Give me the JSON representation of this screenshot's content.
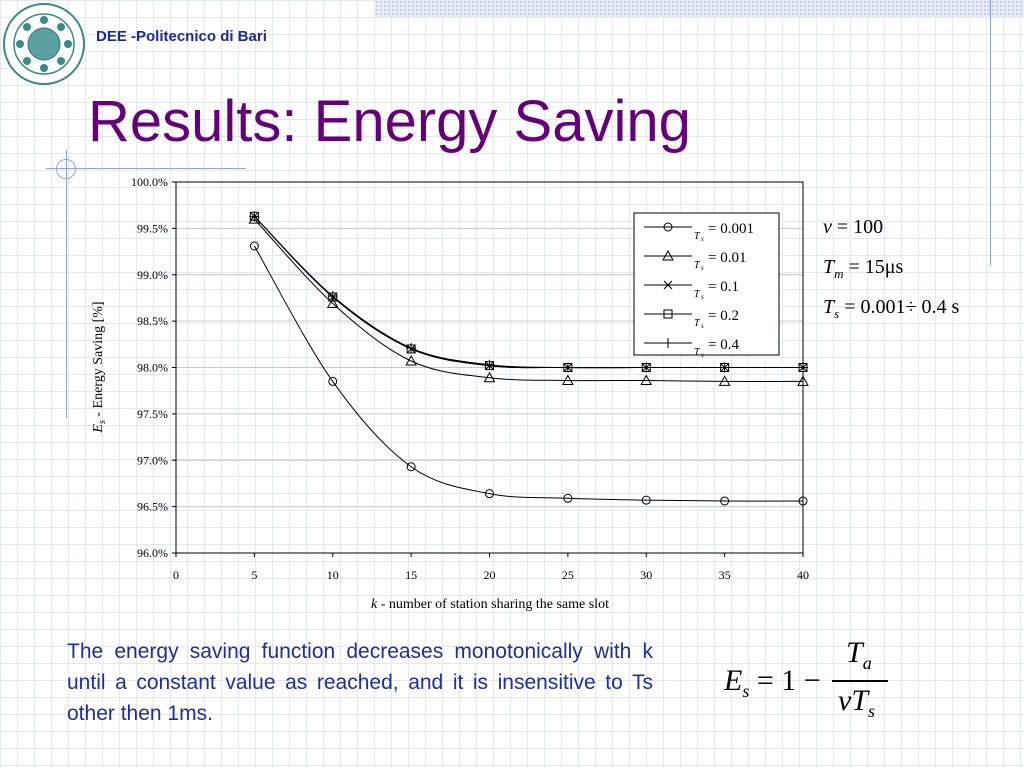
{
  "header": {
    "institution": "DEE -Politecnico di Bari",
    "title": "Results: Energy Saving"
  },
  "colors": {
    "title": "#66007a",
    "institution": "#1a2a9a",
    "body_text": "#1e2f9a",
    "grid": "#e3e8f2",
    "deco_line": "#8fa3d6"
  },
  "chart_data": {
    "type": "line",
    "x": [
      5,
      10,
      15,
      20,
      25,
      30,
      35,
      40
    ],
    "xlim": [
      0,
      40
    ],
    "ylim": [
      96.0,
      100.0
    ],
    "x_ticks": [
      "0",
      "5",
      "10",
      "15",
      "20",
      "25",
      "30",
      "35",
      "40"
    ],
    "y_ticks": [
      "96.0%",
      "96.5%",
      "97.0%",
      "97.5%",
      "98.0%",
      "98.5%",
      "99.0%",
      "99.5%",
      "100.0%"
    ],
    "xlabel_var": "k",
    "xlabel": "- number of station sharing the same slot",
    "ylabel_var": "E",
    "ylabel_sub": "s",
    "ylabel": "- Energy Saving [%]",
    "grid": true,
    "legend_position": "top-right",
    "legend_var": "T",
    "legend_sub": "s",
    "series": [
      {
        "name": "= 0.001",
        "marker": "circle",
        "values": [
          99.31,
          97.85,
          96.93,
          96.64,
          96.59,
          96.57,
          96.56,
          96.56
        ]
      },
      {
        "name": "= 0.01",
        "marker": "triangle",
        "values": [
          99.6,
          98.69,
          98.07,
          97.89,
          97.86,
          97.86,
          97.85,
          97.85
        ]
      },
      {
        "name": "= 0.1",
        "marker": "x",
        "values": [
          99.63,
          98.76,
          98.2,
          98.02,
          98.0,
          98.0,
          98.0,
          98.0
        ]
      },
      {
        "name": "= 0.2",
        "marker": "square",
        "values": [
          99.63,
          98.76,
          98.2,
          98.02,
          98.0,
          98.0,
          98.0,
          98.0
        ]
      },
      {
        "name": "= 0.4",
        "marker": "plus",
        "values": [
          99.63,
          98.77,
          98.21,
          98.03,
          98.0,
          98.0,
          98.0,
          98.0
        ]
      }
    ]
  },
  "params": {
    "v_label": "v",
    "v_value": "= 100",
    "tm_label": "T",
    "tm_sub": "m",
    "tm_value": "= 15μs",
    "ts_label": "T",
    "ts_sub": "s",
    "ts_value": "= 0.001÷ 0.4 s"
  },
  "description": "The energy saving function decreases monotonically with k until a constant value as reached, and it is insensitive to Ts other then 1ms.",
  "formula": {
    "lhs_var": "E",
    "lhs_sub": "s",
    "lhs_rest": "= 1 −",
    "num_var": "T",
    "num_sub": "a",
    "den_var": "vT",
    "den_sub": "s"
  }
}
